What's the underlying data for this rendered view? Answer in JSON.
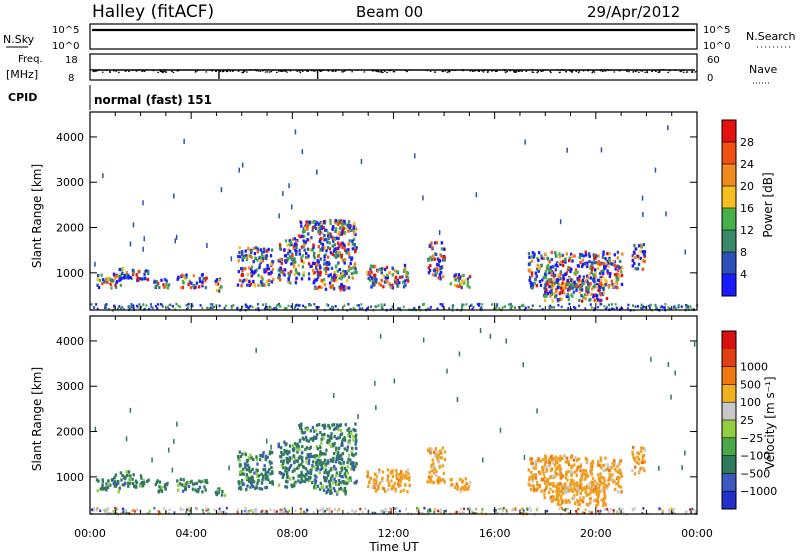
{
  "header": {
    "station": "Halley (fitACF)",
    "beam": "Beam 00",
    "date": "29/Apr/2012"
  },
  "side_labels": {
    "nsky": "N.Sky",
    "nsearch": "N.Search",
    "freq": "Freq.",
    "freq_unit": "[MHz]",
    "nave": "Nave",
    "cpid": "CPID"
  },
  "cpid_text": "normal (fast) 151",
  "colors": {
    "power_scale": [
      "#1a1aff",
      "#2a50b8",
      "#3a8a6a",
      "#46b04a",
      "#f4c020",
      "#f08a1e",
      "#f05010",
      "#e61010"
    ],
    "velocity_scale": [
      "#2030c8",
      "#3a5ac0",
      "#2f7a5a",
      "#4aa84a",
      "#90d040",
      "#c8c8c8",
      "#f0b020",
      "#f07810",
      "#e04010",
      "#d81010"
    ],
    "velocity_panel": {
      "green": "#2f7a5a",
      "orange": "#f0a020",
      "grey": "#c8c8c8"
    }
  },
  "chart_data": [
    {
      "type": "line",
      "title": "N.Sky / N.Search",
      "y_tick_labels_left": [
        "10^5",
        "10^0"
      ],
      "y_tick_labels_right": [
        "10^5",
        "10^0"
      ],
      "series": [
        {
          "name": "N.Sky",
          "note": "≈ constant near 10^5 through the day"
        }
      ]
    },
    {
      "type": "scatter",
      "title": "Freq. / Nave",
      "y_tick_labels_left": [
        "18",
        "8"
      ],
      "y_tick_labels_right": [
        "60",
        "0"
      ],
      "series": [
        {
          "name": "Freq.",
          "approx_value": 11
        }
      ]
    },
    {
      "type": "heatmap",
      "title": "Power",
      "xlabel": "",
      "ylabel": "Slant Range [km]",
      "x_ticks": [
        "00:00",
        "04:00",
        "08:00",
        "12:00",
        "16:00",
        "20:00",
        "00:00"
      ],
      "xlim_hours": [
        0,
        24
      ],
      "y_ticks": [
        "1000",
        "2000",
        "3000",
        "4000"
      ],
      "ylim_km": [
        180,
        4550
      ],
      "colorbar_label": "Power [dB]",
      "colorbar_ticks": [
        "4",
        "8",
        "12",
        "16",
        "20",
        "24",
        "28"
      ]
    },
    {
      "type": "heatmap",
      "title": "Velocity",
      "xlabel": "Time UT",
      "ylabel": "Slant Range [km]",
      "x_ticks": [
        "00:00",
        "04:00",
        "08:00",
        "12:00",
        "16:00",
        "20:00",
        "00:00"
      ],
      "xlim_hours": [
        0,
        24
      ],
      "y_ticks": [
        "1000",
        "2000",
        "3000",
        "4000"
      ],
      "ylim_km": [
        180,
        4550
      ],
      "colorbar_label": "Velocity [m s⁻¹]",
      "colorbar_ticks": [
        "-1000",
        "-500",
        "-100",
        "-25",
        "25",
        "100",
        "500",
        "1000"
      ]
    }
  ]
}
